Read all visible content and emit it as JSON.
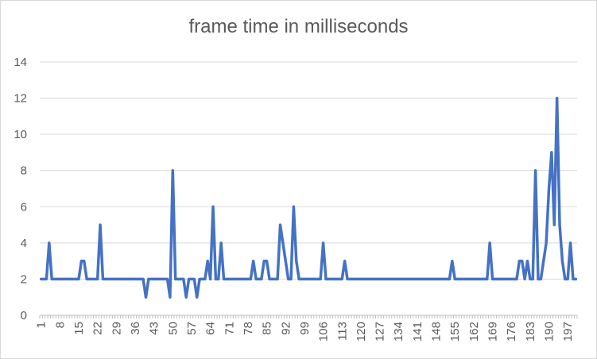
{
  "chart_data": {
    "type": "line",
    "title": "frame time in milliseconds",
    "xlabel": "",
    "ylabel": "",
    "ylim": [
      0,
      14
    ],
    "yticks": [
      0,
      2,
      4,
      6,
      8,
      10,
      12,
      14
    ],
    "x_tick_labels": [
      "1",
      "8",
      "15",
      "22",
      "29",
      "36",
      "43",
      "50",
      "57",
      "64",
      "71",
      "78",
      "85",
      "92",
      "99",
      "106",
      "113",
      "120",
      "127",
      "134",
      "141",
      "148",
      "155",
      "162",
      "169",
      "176",
      "183",
      "190",
      "197"
    ],
    "x_tick_interval": 7,
    "grid": true,
    "legend": "none",
    "series_color": "#4472c4",
    "series": [
      {
        "x_start": 1,
        "values": [
          2,
          2,
          2,
          4,
          2,
          2,
          2,
          2,
          2,
          2,
          2,
          2,
          2,
          2,
          2,
          3,
          3,
          2,
          2,
          2,
          2,
          2,
          5,
          2,
          2,
          2,
          2,
          2,
          2,
          2,
          2,
          2,
          2,
          2,
          2,
          2,
          2,
          2,
          2,
          1,
          2,
          2,
          2,
          2,
          2,
          2,
          2,
          2,
          1,
          8,
          2,
          2,
          2,
          2,
          1,
          2,
          2,
          2,
          1,
          2,
          2,
          2,
          3,
          2,
          6,
          2,
          2,
          4,
          2,
          2,
          2,
          2,
          2,
          2,
          2,
          2,
          2,
          2,
          2,
          3,
          2,
          2,
          2,
          3,
          3,
          2,
          2,
          2,
          2,
          5,
          4,
          3,
          2,
          2,
          6,
          3,
          2,
          2,
          2,
          2,
          2,
          2,
          2,
          2,
          2,
          4,
          2,
          2,
          2,
          2,
          2,
          2,
          2,
          3,
          2,
          2,
          2,
          2,
          2,
          2,
          2,
          2,
          2,
          2,
          2,
          2,
          2,
          2,
          2,
          2,
          2,
          2,
          2,
          2,
          2,
          2,
          2,
          2,
          2,
          2,
          2,
          2,
          2,
          2,
          2,
          2,
          2,
          2,
          2,
          2,
          2,
          2,
          2,
          3,
          2,
          2,
          2,
          2,
          2,
          2,
          2,
          2,
          2,
          2,
          2,
          2,
          2,
          4,
          2,
          2,
          2,
          2,
          2,
          2,
          2,
          2,
          2,
          2,
          3,
          3,
          2,
          3,
          2,
          2,
          8,
          2,
          2,
          3,
          4,
          7,
          9,
          5,
          12,
          5,
          3,
          2,
          2,
          4,
          2,
          2
        ]
      }
    ]
  }
}
